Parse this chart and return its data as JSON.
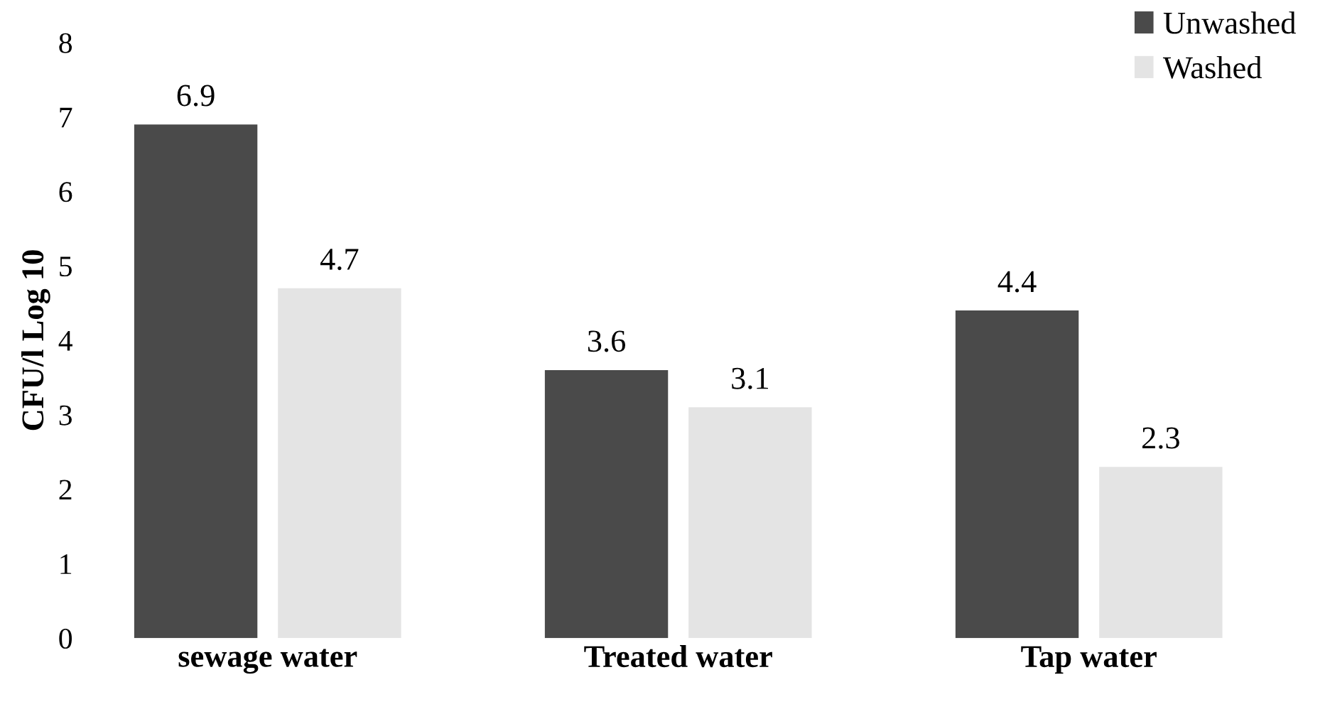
{
  "chart_data": {
    "type": "bar",
    "ylabel": "CFU/l Log 10",
    "categories": [
      "sewage water",
      "Treated water",
      "Tap water"
    ],
    "series": [
      {
        "name": "Unwashed",
        "color": "#4a4a4a",
        "values": [
          6.9,
          3.6,
          4.4
        ]
      },
      {
        "name": "Washed",
        "color": "#e4e4e4",
        "values": [
          4.7,
          3.1,
          2.3
        ]
      }
    ],
    "ylim": [
      0,
      8
    ],
    "yticks": [
      0,
      1,
      2,
      3,
      4,
      5,
      6,
      7,
      8
    ],
    "grid": false,
    "legend": "top right",
    "data_labels": true
  }
}
